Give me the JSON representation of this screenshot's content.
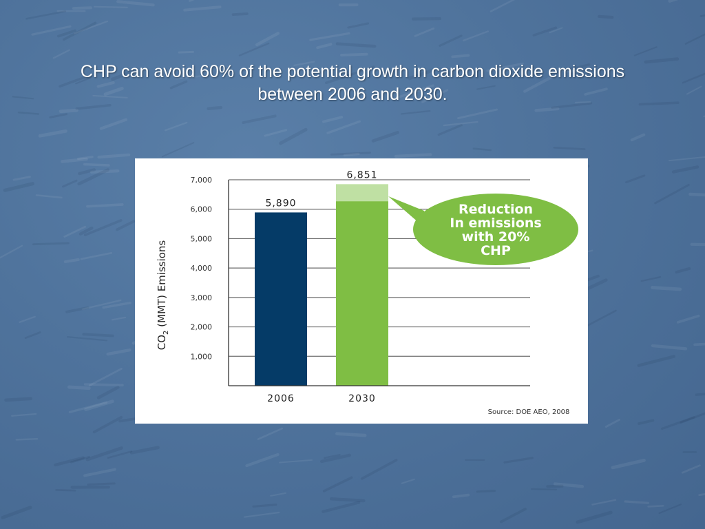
{
  "slide": {
    "title_line1": "CHP can avoid 60% of the potential growth in carbon dioxide emissions",
    "title_line2": "between 2006 and 2030."
  },
  "colors": {
    "background": "#4f739c",
    "bar_2006": "#053b67",
    "bar_2030": "#7fbe44",
    "bar_2030_reduction": "#bfe0a3",
    "callout": "#7fbe44",
    "callout_text": "#ffffff"
  },
  "chart_data": {
    "type": "bar",
    "categories": [
      "2006",
      "2030"
    ],
    "values": [
      5890,
      6851
    ],
    "value_labels": [
      "5,890",
      "6,851"
    ],
    "reduction": {
      "category": "2030",
      "from": 6270,
      "to": 6851
    },
    "ylim": [
      0,
      7000
    ],
    "y_ticks": [
      1000,
      2000,
      3000,
      4000,
      5000,
      6000,
      7000
    ],
    "y_tick_labels": [
      "1,000",
      "2,000",
      "3,000",
      "4,000",
      "5,000",
      "6,000",
      "7,000"
    ],
    "ylabel_main": "CO",
    "ylabel_sub": "2",
    "ylabel_rest": " (MMT) Emissions",
    "xlabel": "",
    "grid": true,
    "callout_lines": [
      "Reduction",
      "In emissions",
      "with 20%",
      "CHP"
    ],
    "source": "Source:  DOE AEO, 2008"
  }
}
